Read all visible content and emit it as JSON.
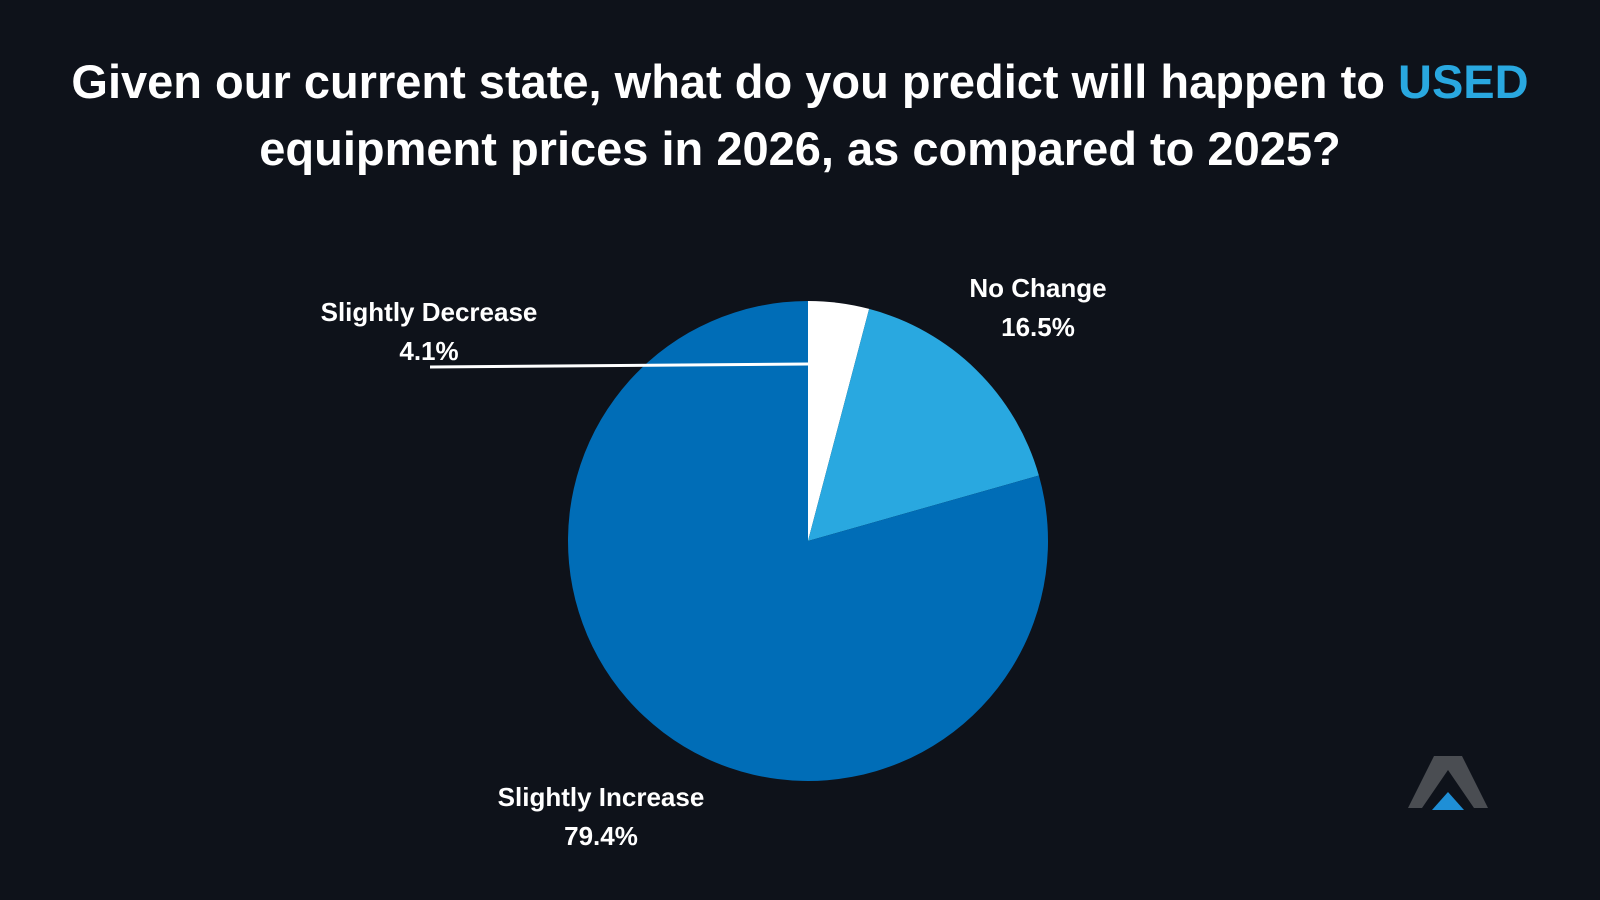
{
  "title": {
    "part1": "Given our current state, what do you predict will happen to ",
    "highlight": "USED",
    "part2": " equipment prices in 2026, as compared to 2025?"
  },
  "chart_data": {
    "type": "pie",
    "title": "Given our current state, what do you predict will happen to USED equipment prices in 2026, as compared to 2025?",
    "start_angle_deg": 0,
    "direction": "clockwise",
    "slices": [
      {
        "label": "Slightly Decrease",
        "value": 4.1,
        "display": "4.1%",
        "color": "#ffffff"
      },
      {
        "label": "No Change",
        "value": 16.5,
        "display": "16.5%",
        "color": "#29a8e0"
      },
      {
        "label": "Slightly Increase",
        "value": 79.4,
        "display": "79.4%",
        "color": "#006db7"
      }
    ],
    "label_positions": [
      "top-left",
      "top-right",
      "bottom"
    ]
  },
  "colors": {
    "background": "#0e121a",
    "accent": "#29a8e0",
    "logo_gray": "#4a4d52",
    "logo_blue": "#1f8fd6"
  },
  "logo": {
    "icon": "mountain-peak-icon"
  }
}
